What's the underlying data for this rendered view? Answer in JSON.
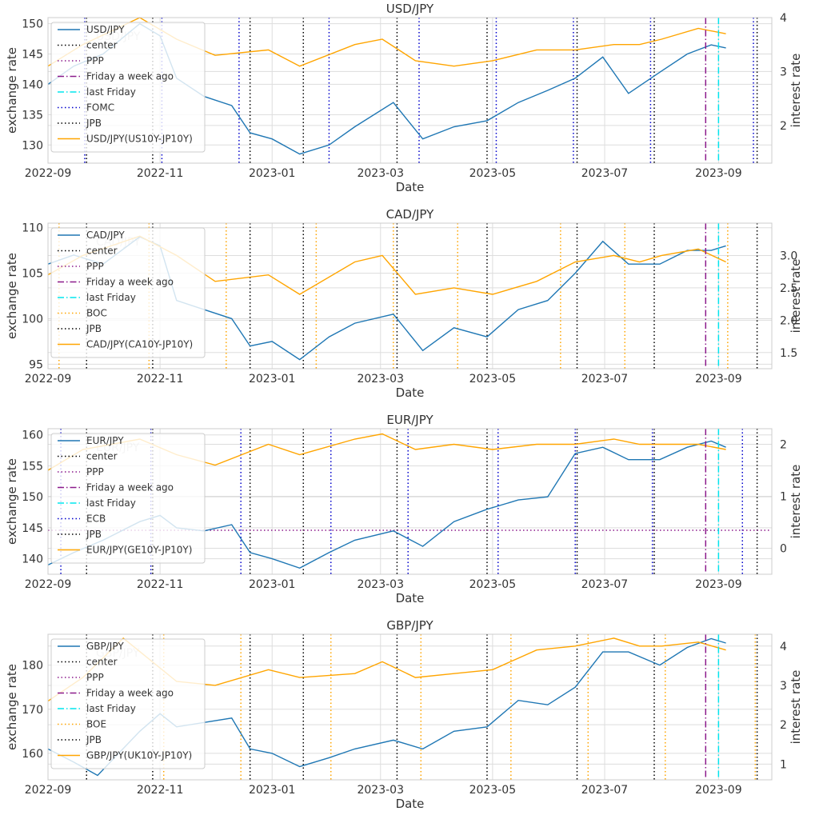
{
  "figure": {
    "background": "#ffffff",
    "grid_color": "#dddddd",
    "spine_color": "#cccccc"
  },
  "common": {
    "xlabel": "Date",
    "ylabel_left": "exchange rate",
    "ylabel_right": "interest rate",
    "x_ticks": [
      "2022-09",
      "2022-11",
      "2023-01",
      "2023-03",
      "2023-05",
      "2023-07",
      "2023-09"
    ],
    "x_tick_dates": [
      "2022-09-01",
      "2022-11-01",
      "2023-01-01",
      "2023-03-01",
      "2023-05-01",
      "2023-07-01",
      "2023-09-01"
    ],
    "xlim": [
      "2022-09-01",
      "2023-09-30"
    ],
    "events_common": {
      "center": {
        "label": "center",
        "color": "#000000",
        "style": "dotted"
      },
      "ppp": {
        "label": "PPP",
        "color": "#8b1a8b",
        "style": "dotted"
      },
      "week_ago": {
        "label": "Friday a week ago",
        "color": "#8b1a8b",
        "style": "dashdot",
        "date": "2023-08-25"
      },
      "last_friday": {
        "label": "last Friday",
        "color": "#00e5ee",
        "style": "dashdot",
        "date": "2023-09-01"
      },
      "jpb": {
        "label": "JPB",
        "color": "#000000",
        "style": "dotted",
        "dates": [
          "2022-09-22",
          "2022-10-28",
          "2022-12-20",
          "2023-01-18",
          "2023-03-10",
          "2023-04-28",
          "2023-06-16",
          "2023-07-28",
          "2023-09-22"
        ]
      }
    },
    "colors": {
      "exchange": "#1f77b4",
      "interest": "#ffa500"
    }
  },
  "chart_data": [
    {
      "type": "line",
      "title": "USD/JPY",
      "watermark": "USD/JPY",
      "ylim": [
        127,
        151
      ],
      "yticks": [
        130,
        135,
        140,
        145,
        150
      ],
      "ylim_right": [
        1.3,
        4.0
      ],
      "yticks_right": [
        2,
        3,
        4
      ],
      "series": [
        {
          "name": "USD/JPY",
          "axis": "left",
          "x": [
            "2022-09-01",
            "2022-09-15",
            "2022-10-01",
            "2022-10-21",
            "2022-11-01",
            "2022-11-10",
            "2022-11-25",
            "2022-12-10",
            "2022-12-20",
            "2023-01-01",
            "2023-01-16",
            "2023-02-01",
            "2023-02-15",
            "2023-03-08",
            "2023-03-24",
            "2023-04-10",
            "2023-04-28",
            "2023-05-15",
            "2023-05-31",
            "2023-06-15",
            "2023-06-30",
            "2023-07-14",
            "2023-07-31",
            "2023-08-15",
            "2023-08-28",
            "2023-09-05"
          ],
          "y": [
            140,
            143,
            145,
            150,
            148,
            141,
            138,
            136.5,
            132,
            131,
            128.5,
            130,
            133,
            137,
            131,
            133,
            134,
            137,
            139,
            141,
            144.5,
            138.5,
            142,
            145,
            146.5,
            146
          ]
        },
        {
          "name": "USD/JPY(US10Y-JP10Y)",
          "axis": "right",
          "x": [
            "2022-09-01",
            "2022-09-20",
            "2022-10-21",
            "2022-11-10",
            "2022-12-01",
            "2022-12-30",
            "2023-01-16",
            "2023-02-15",
            "2023-03-02",
            "2023-03-20",
            "2023-04-10",
            "2023-05-01",
            "2023-05-25",
            "2023-06-15",
            "2023-07-06",
            "2023-07-20",
            "2023-08-01",
            "2023-08-21",
            "2023-09-05"
          ],
          "y": [
            3.1,
            3.5,
            4.0,
            3.6,
            3.3,
            3.4,
            3.1,
            3.5,
            3.6,
            3.2,
            3.1,
            3.2,
            3.4,
            3.4,
            3.5,
            3.5,
            3.6,
            3.8,
            3.7
          ]
        }
      ],
      "policy": {
        "label": "FOMC",
        "color": "#0000cc",
        "dates": [
          "2022-09-21",
          "2022-11-02",
          "2022-12-14",
          "2023-02-01",
          "2023-03-22",
          "2023-05-03",
          "2023-06-14",
          "2023-07-26",
          "2023-09-20"
        ]
      },
      "legend_order": [
        "USD/JPY",
        "center",
        "PPP",
        "Friday a week ago",
        "last Friday",
        "FOMC",
        "JPB",
        "USD/JPY(US10Y-JP10Y)"
      ]
    },
    {
      "type": "line",
      "title": "CAD/JPY",
      "watermark": "CAD/JPY",
      "ylim": [
        94.5,
        110.5
      ],
      "yticks": [
        95,
        100,
        105,
        110
      ],
      "ylim_right": [
        1.25,
        3.5
      ],
      "yticks_right": [
        1.5,
        2.0,
        2.5,
        3.0
      ],
      "series": [
        {
          "name": "CAD/JPY",
          "axis": "left",
          "x": [
            "2022-09-01",
            "2022-09-15",
            "2022-10-01",
            "2022-10-21",
            "2022-11-01",
            "2022-11-10",
            "2022-11-25",
            "2022-12-10",
            "2022-12-20",
            "2023-01-01",
            "2023-01-16",
            "2023-02-01",
            "2023-02-15",
            "2023-03-08",
            "2023-03-24",
            "2023-04-10",
            "2023-04-28",
            "2023-05-15",
            "2023-05-31",
            "2023-06-15",
            "2023-06-30",
            "2023-07-14",
            "2023-07-31",
            "2023-08-15",
            "2023-08-28",
            "2023-09-05"
          ],
          "y": [
            106,
            107,
            106,
            109,
            108,
            102,
            101,
            100,
            97,
            97.5,
            95.5,
            98,
            99.5,
            100.5,
            96.5,
            99,
            98,
            101,
            102,
            105,
            108.5,
            106,
            106,
            107.5,
            107.5,
            108
          ]
        },
        {
          "name": "CAD/JPY(CA10Y-JP10Y)",
          "axis": "right",
          "x": [
            "2022-09-01",
            "2022-09-20",
            "2022-10-21",
            "2022-11-10",
            "2022-12-01",
            "2022-12-30",
            "2023-01-16",
            "2023-02-15",
            "2023-03-02",
            "2023-03-20",
            "2023-04-10",
            "2023-05-01",
            "2023-05-25",
            "2023-06-15",
            "2023-07-06",
            "2023-07-20",
            "2023-08-01",
            "2023-08-21",
            "2023-09-05"
          ],
          "y": [
            2.7,
            3.0,
            3.3,
            3.0,
            2.6,
            2.7,
            2.4,
            2.9,
            3.0,
            2.4,
            2.5,
            2.4,
            2.6,
            2.9,
            3.0,
            2.9,
            3.0,
            3.1,
            2.9
          ]
        }
      ],
      "policy": {
        "label": "BOC",
        "color": "#ffa500",
        "dates": [
          "2022-09-07",
          "2022-10-26",
          "2022-12-07",
          "2023-01-25",
          "2023-03-08",
          "2023-04-12",
          "2023-06-07",
          "2023-07-12",
          "2023-09-06"
        ]
      },
      "legend_order": [
        "CAD/JPY",
        "center",
        "PPP",
        "Friday a week ago",
        "last Friday",
        "BOC",
        "JPB",
        "CAD/JPY(CA10Y-JP10Y)"
      ]
    },
    {
      "type": "line",
      "title": "EUR/JPY",
      "watermark": "EUR/JPY",
      "ylim": [
        137.5,
        161
      ],
      "yticks": [
        140,
        145,
        150,
        155,
        160
      ],
      "ylim_right": [
        -0.5,
        2.3
      ],
      "yticks_right": [
        0,
        1,
        2
      ],
      "ppp_value": 144.6,
      "series": [
        {
          "name": "EUR/JPY",
          "axis": "left",
          "x": [
            "2022-09-01",
            "2022-09-15",
            "2022-10-01",
            "2022-10-21",
            "2022-11-01",
            "2022-11-10",
            "2022-11-25",
            "2022-12-10",
            "2022-12-20",
            "2023-01-01",
            "2023-01-16",
            "2023-02-01",
            "2023-02-15",
            "2023-03-08",
            "2023-03-24",
            "2023-04-10",
            "2023-04-28",
            "2023-05-15",
            "2023-05-31",
            "2023-06-15",
            "2023-06-30",
            "2023-07-14",
            "2023-07-31",
            "2023-08-15",
            "2023-08-28",
            "2023-09-05"
          ],
          "y": [
            139,
            141,
            143,
            146,
            147,
            145,
            144.5,
            145.5,
            141,
            140,
            138.5,
            141,
            143,
            144.5,
            142,
            146,
            148,
            149.5,
            150,
            157,
            158,
            156,
            156,
            158,
            159,
            158
          ]
        },
        {
          "name": "EUR/JPY(GE10Y-JP10Y)",
          "axis": "right",
          "x": [
            "2022-09-01",
            "2022-09-20",
            "2022-10-21",
            "2022-11-10",
            "2022-12-01",
            "2022-12-30",
            "2023-01-16",
            "2023-02-15",
            "2023-03-02",
            "2023-03-20",
            "2023-04-10",
            "2023-05-01",
            "2023-05-25",
            "2023-06-15",
            "2023-07-06",
            "2023-07-20",
            "2023-08-01",
            "2023-08-21",
            "2023-09-05"
          ],
          "y": [
            1.5,
            1.9,
            2.1,
            1.8,
            1.6,
            2.0,
            1.8,
            2.1,
            2.2,
            1.9,
            2.0,
            1.9,
            2.0,
            2.0,
            2.1,
            2.0,
            2.0,
            2.0,
            1.9
          ]
        }
      ],
      "policy": {
        "label": "ECB",
        "color": "#0000cc",
        "dates": [
          "2022-09-08",
          "2022-10-27",
          "2022-12-15",
          "2023-02-02",
          "2023-03-16",
          "2023-05-04",
          "2023-06-15",
          "2023-07-27",
          "2023-09-14"
        ]
      },
      "legend_order": [
        "EUR/JPY",
        "center",
        "PPP",
        "Friday a week ago",
        "last Friday",
        "ECB",
        "JPB",
        "EUR/JPY(GE10Y-JP10Y)"
      ]
    },
    {
      "type": "line",
      "title": "GBP/JPY",
      "watermark": "GBP/JPY",
      "ylim": [
        154,
        187
      ],
      "yticks": [
        160,
        170,
        180
      ],
      "ylim_right": [
        0.6,
        4.3
      ],
      "yticks_right": [
        1,
        2,
        3,
        4
      ],
      "series": [
        {
          "name": "GBP/JPY",
          "axis": "left",
          "x": [
            "2022-09-01",
            "2022-09-15",
            "2022-09-28",
            "2022-10-21",
            "2022-11-01",
            "2022-11-10",
            "2022-11-25",
            "2022-12-10",
            "2022-12-20",
            "2023-01-01",
            "2023-01-16",
            "2023-02-01",
            "2023-02-15",
            "2023-03-08",
            "2023-03-24",
            "2023-04-10",
            "2023-04-28",
            "2023-05-15",
            "2023-05-31",
            "2023-06-15",
            "2023-06-30",
            "2023-07-14",
            "2023-07-31",
            "2023-08-15",
            "2023-08-28",
            "2023-09-05"
          ],
          "y": [
            161,
            158,
            155,
            165,
            169,
            166,
            167,
            168,
            161,
            160,
            157,
            159,
            161,
            163,
            161,
            165,
            166,
            172,
            171,
            175,
            183,
            183,
            180,
            184,
            186,
            185
          ]
        },
        {
          "name": "GBP/JPY(UK10Y-JP10Y)",
          "axis": "right",
          "x": [
            "2022-09-01",
            "2022-09-20",
            "2022-10-12",
            "2022-11-10",
            "2022-12-01",
            "2022-12-30",
            "2023-01-16",
            "2023-02-15",
            "2023-03-02",
            "2023-03-20",
            "2023-04-10",
            "2023-05-01",
            "2023-05-25",
            "2023-06-15",
            "2023-07-06",
            "2023-07-20",
            "2023-08-01",
            "2023-08-21",
            "2023-09-05"
          ],
          "y": [
            2.6,
            3.2,
            4.2,
            3.1,
            3.0,
            3.4,
            3.2,
            3.3,
            3.6,
            3.2,
            3.3,
            3.4,
            3.9,
            4.0,
            4.2,
            4.0,
            4.0,
            4.1,
            3.9
          ]
        }
      ],
      "policy": {
        "label": "BOE",
        "color": "#ffa500",
        "dates": [
          "2022-09-22",
          "2022-11-03",
          "2022-12-15",
          "2023-02-02",
          "2023-03-23",
          "2023-05-11",
          "2023-06-22",
          "2023-08-03",
          "2023-09-21"
        ]
      },
      "legend_order": [
        "GBP/JPY",
        "center",
        "PPP",
        "Friday a week ago",
        "last Friday",
        "BOE",
        "JPB",
        "GBP/JPY(UK10Y-JP10Y)"
      ]
    }
  ]
}
